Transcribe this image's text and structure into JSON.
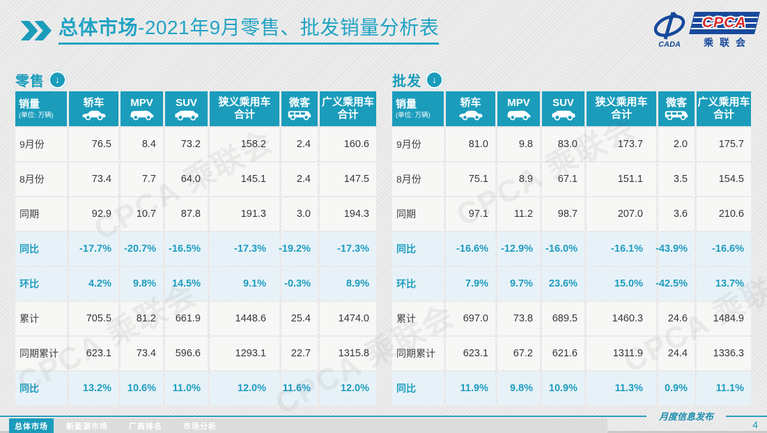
{
  "header": {
    "title_bold": "总体市场",
    "title_rest": "-2021年9月零售、批发销量分析表"
  },
  "logo": {
    "cpca": "CPCA",
    "cada": "CADA",
    "cn_name": "乘联会"
  },
  "icons": {
    "down_arrow": "↓"
  },
  "watermark": {
    "text": "CPCA 乘联会"
  },
  "footer": {
    "note": "月度信息发布",
    "page_number": "4"
  },
  "nav": {
    "tabs": [
      {
        "label": "总体市场",
        "active": true
      },
      {
        "label": "新能源市场",
        "active": false
      },
      {
        "label": "厂商排名",
        "active": false
      },
      {
        "label": "市场分析",
        "active": false
      }
    ]
  },
  "tables": [
    {
      "section_title": "零售",
      "corner": {
        "title": "销量",
        "unit": "(单位: 万辆)"
      },
      "columns": [
        {
          "lines": [
            "轿车"
          ],
          "icon": "sedan-icon"
        },
        {
          "lines": [
            "MPV"
          ],
          "icon": "mpv-icon"
        },
        {
          "lines": [
            "SUV"
          ],
          "icon": "suv-icon"
        },
        {
          "lines": [
            "狭义乘用车",
            "合计"
          ],
          "icon": null
        },
        {
          "lines": [
            "微客"
          ],
          "icon": "minibus-icon"
        },
        {
          "lines": [
            "广义乘用车",
            "合计"
          ],
          "icon": null
        }
      ],
      "rows": [
        {
          "label": "9月份",
          "values": [
            "76.5",
            "8.4",
            "73.2",
            "158.2",
            "2.4",
            "160.6"
          ],
          "highlight": false
        },
        {
          "label": "8月份",
          "values": [
            "73.4",
            "7.7",
            "64.0",
            "145.1",
            "2.4",
            "147.5"
          ],
          "highlight": false
        },
        {
          "label": "同期",
          "values": [
            "92.9",
            "10.7",
            "87.8",
            "191.3",
            "3.0",
            "194.3"
          ],
          "highlight": false
        },
        {
          "label": "同比",
          "values": [
            "-17.7%",
            "-20.7%",
            "-16.5%",
            "-17.3%",
            "-19.2%",
            "-17.3%"
          ],
          "highlight": true
        },
        {
          "label": "环比",
          "values": [
            "4.2%",
            "9.8%",
            "14.5%",
            "9.1%",
            "-0.3%",
            "8.9%"
          ],
          "highlight": true
        },
        {
          "label": "累计",
          "values": [
            "705.5",
            "81.2",
            "661.9",
            "1448.6",
            "25.4",
            "1474.0"
          ],
          "highlight": false
        },
        {
          "label": "同期累计",
          "values": [
            "623.1",
            "73.4",
            "596.6",
            "1293.1",
            "22.7",
            "1315.8"
          ],
          "highlight": false
        },
        {
          "label": "同比",
          "values": [
            "13.2%",
            "10.6%",
            "11.0%",
            "12.0%",
            "11.6%",
            "12.0%"
          ],
          "highlight": true
        }
      ]
    },
    {
      "section_title": "批发",
      "corner": {
        "title": "销量",
        "unit": "(单位: 万辆)"
      },
      "columns": [
        {
          "lines": [
            "轿车"
          ],
          "icon": "sedan-icon"
        },
        {
          "lines": [
            "MPV"
          ],
          "icon": "mpv-icon"
        },
        {
          "lines": [
            "SUV"
          ],
          "icon": "suv-icon"
        },
        {
          "lines": [
            "狭义乘用车",
            "合计"
          ],
          "icon": null
        },
        {
          "lines": [
            "微客"
          ],
          "icon": "minibus-icon"
        },
        {
          "lines": [
            "广义乘用车",
            "合计"
          ],
          "icon": null
        }
      ],
      "rows": [
        {
          "label": "9月份",
          "values": [
            "81.0",
            "9.8",
            "83.0",
            "173.7",
            "2.0",
            "175.7"
          ],
          "highlight": false
        },
        {
          "label": "8月份",
          "values": [
            "75.1",
            "8.9",
            "67.1",
            "151.1",
            "3.5",
            "154.5"
          ],
          "highlight": false
        },
        {
          "label": "同期",
          "values": [
            "97.1",
            "11.2",
            "98.7",
            "207.0",
            "3.6",
            "210.6"
          ],
          "highlight": false
        },
        {
          "label": "同比",
          "values": [
            "-16.6%",
            "-12.9%",
            "-16.0%",
            "-16.1%",
            "-43.9%",
            "-16.6%"
          ],
          "highlight": true
        },
        {
          "label": "环比",
          "values": [
            "7.9%",
            "9.7%",
            "23.6%",
            "15.0%",
            "-42.5%",
            "13.7%"
          ],
          "highlight": true
        },
        {
          "label": "累计",
          "values": [
            "697.0",
            "73.8",
            "689.5",
            "1460.3",
            "24.6",
            "1484.9"
          ],
          "highlight": false
        },
        {
          "label": "同期累计",
          "values": [
            "623.1",
            "67.2",
            "621.6",
            "1311.9",
            "24.4",
            "1336.3"
          ],
          "highlight": false
        },
        {
          "label": "同比",
          "values": [
            "11.9%",
            "9.8%",
            "10.9%",
            "11.3%",
            "0.9%",
            "11.1%"
          ],
          "highlight": true
        }
      ]
    }
  ],
  "colors": {
    "accent_teal": "#1b9cbb",
    "title_teal": "#21a3c4",
    "highlight_bg": "#e7f2f8",
    "highlight_text": "#1e9dbf",
    "logo_blue": "#17499b",
    "logo_red": "#d92b2b"
  }
}
